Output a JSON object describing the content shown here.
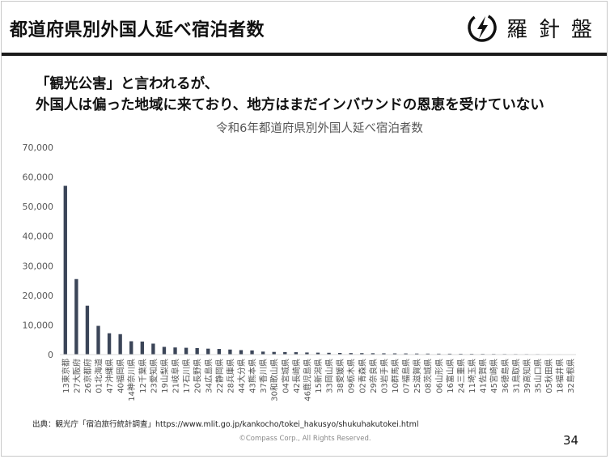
{
  "header": {
    "title": "都道府県別外国人延べ宿泊者数",
    "logo_text": "羅針盤"
  },
  "headline": {
    "line1": "「観光公害」と言われるが、",
    "line2": "外国人は偏った地域に来ており、地方はまだインバウンドの恩恵を受けていない"
  },
  "chart_data": {
    "type": "bar",
    "title": "令和6年都道府県別外国人延べ宿泊者数",
    "xlabel": "",
    "ylabel": "",
    "ylim": [
      0,
      70000
    ],
    "yticks": [
      0,
      10000,
      20000,
      30000,
      40000,
      50000,
      60000,
      70000
    ],
    "ytick_labels": [
      "0",
      "10,000",
      "20,000",
      "30,000",
      "40,000",
      "50,000",
      "60,000",
      "70,000"
    ],
    "bar_color": "#3b4558",
    "grid": false,
    "categories": [
      "13東京都",
      "27大阪府",
      "26京都府",
      "01北海道",
      "47沖縄県",
      "40福岡県",
      "14神奈川県",
      "12千葉県",
      "23愛知県",
      "19山梨県",
      "21岐阜県",
      "17石川県",
      "20長野県",
      "34広島県",
      "22静岡県",
      "28兵庫県",
      "44大分県",
      "43熊本県",
      "37香川県",
      "30和歌山県",
      "04宮城県",
      "42長崎県",
      "46鹿児島県",
      "15新潟県",
      "33岡山県",
      "38愛媛県",
      "09栃木県",
      "02青森県",
      "29奈良県",
      "03岩手県",
      "10群馬県",
      "07福島県",
      "25滋賀県",
      "08茨城県",
      "06山形県",
      "16富山県",
      "24三重県",
      "11埼玉県",
      "41佐賀県",
      "45宮崎県",
      "36徳島県",
      "31鳥取県",
      "39高知県",
      "35山口県",
      "05秋田県",
      "18福井県",
      "32島根県"
    ],
    "values": [
      57000,
      25500,
      16500,
      9700,
      7200,
      6900,
      4500,
      4400,
      3700,
      2600,
      2400,
      2300,
      2200,
      2000,
      1900,
      1700,
      1500,
      1400,
      1000,
      900,
      850,
      800,
      700,
      650,
      600,
      550,
      500,
      480,
      450,
      420,
      400,
      380,
      350,
      330,
      310,
      300,
      280,
      260,
      240,
      220,
      200,
      190,
      180,
      170,
      150,
      140,
      120
    ]
  },
  "footer": {
    "source": "出典：観光庁「宿泊旅行統計調査」https://www.mlit.go.jp/kankocho/tokei_hakusyo/shukuhakutokei.html",
    "copyright": "©Compass Corp., All Rights Reserved.",
    "page_number": "34"
  }
}
